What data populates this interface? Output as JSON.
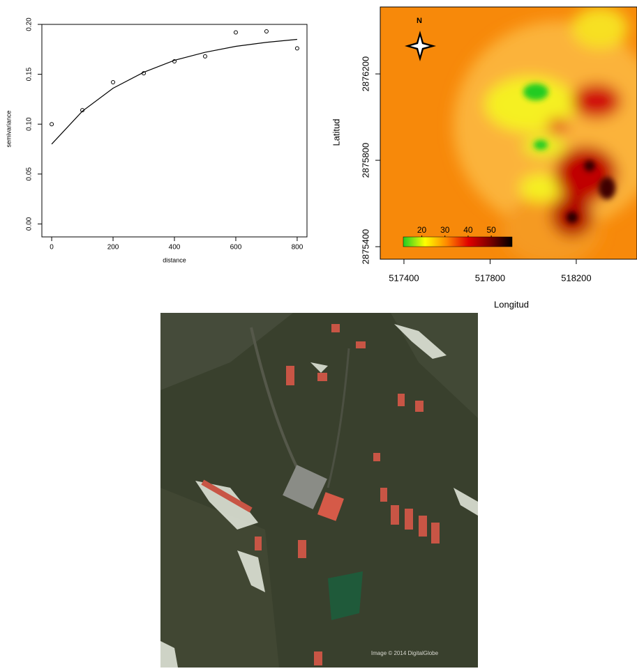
{
  "chart_data": [
    {
      "type": "scatter",
      "xlabel": "distance",
      "ylabel": "semivariance",
      "x": [
        0,
        100,
        200,
        300,
        400,
        500,
        600,
        700,
        800
      ],
      "series": [
        {
          "mode": "markers",
          "color": "#000000",
          "values": [
            0.1,
            0.114,
            0.142,
            0.151,
            0.163,
            0.168,
            0.192,
            0.193,
            0.176
          ]
        },
        {
          "mode": "line",
          "color": "#000000",
          "values": [
            0.08,
            0.113,
            0.136,
            0.152,
            0.164,
            0.172,
            0.178,
            0.182,
            0.185
          ]
        }
      ],
      "xlim": [
        -32,
        832
      ],
      "ylim": [
        -0.013,
        0.2
      ],
      "xticks": [
        0,
        200,
        400,
        600,
        800
      ],
      "yticks": [
        {
          "value": 0,
          "label": "0.00"
        },
        {
          "value": 0.05,
          "label": "0.05"
        },
        {
          "value": 0.1,
          "label": "0.10"
        },
        {
          "value": 0.15,
          "label": "0.15"
        },
        {
          "value": 0.2,
          "label": "0.20"
        }
      ]
    },
    {
      "type": "heatmap",
      "xlabel": "Longitud",
      "ylabel": "Latitud",
      "north_label": "N",
      "xlim": [
        517290,
        518482
      ],
      "ylim": [
        2875342,
        2876510
      ],
      "xticks": [
        517400,
        517800,
        518200
      ],
      "yticks": [
        2875400,
        2875800,
        2876200
      ],
      "colorbar": {
        "lim": [
          12,
          59
        ],
        "ticks": [
          20,
          30,
          40,
          50
        ],
        "colors": [
          "#22cc22",
          "#ffff00",
          "#ff8800",
          "#e00000",
          "#7a0000",
          "#000000"
        ]
      }
    }
  ],
  "image": {
    "credit": "Image © 2014 DigitalGlobe"
  }
}
